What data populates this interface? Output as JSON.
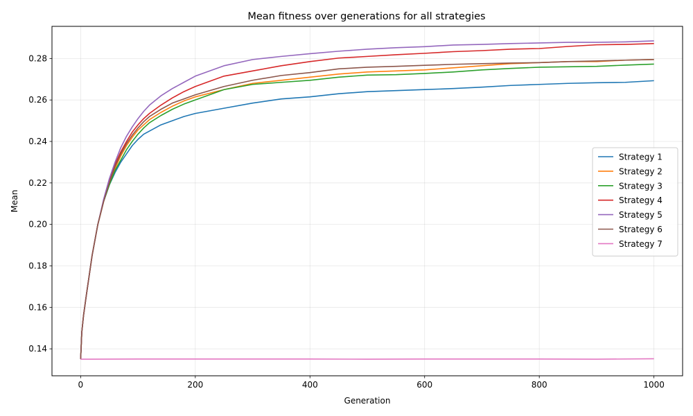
{
  "chart_data": {
    "type": "line",
    "title": "Mean fitness over generations for all strategies",
    "xlabel": "Generation",
    "ylabel": "Mean",
    "xlim": [
      -50,
      1050
    ],
    "ylim": [
      0.127,
      0.2955
    ],
    "xticks": [
      0,
      200,
      400,
      600,
      800,
      1000
    ],
    "xtick_labels": [
      "0",
      "200",
      "400",
      "600",
      "800",
      "1000"
    ],
    "yticks": [
      0.14,
      0.16,
      0.18,
      0.2,
      0.22,
      0.24,
      0.26,
      0.28
    ],
    "ytick_labels": [
      "0.14",
      "0.16",
      "0.18",
      "0.20",
      "0.22",
      "0.24",
      "0.26",
      "0.28"
    ],
    "grid": true,
    "legend_position": "center-right",
    "series": [
      {
        "name": "Strategy 1",
        "color": "#1f77b4",
        "x": [
          0,
          2,
          5,
          10,
          20,
          30,
          40,
          50,
          60,
          70,
          80,
          90,
          100,
          110,
          120,
          140,
          160,
          180,
          200,
          250,
          300,
          350,
          400,
          450,
          500,
          550,
          600,
          650,
          700,
          750,
          800,
          850,
          900,
          950,
          1000
        ],
        "y": [
          0.135,
          0.148,
          0.156,
          0.166,
          0.185,
          0.2,
          0.211,
          0.219,
          0.225,
          0.23,
          0.234,
          0.238,
          0.241,
          0.2435,
          0.245,
          0.248,
          0.25,
          0.252,
          0.2535,
          0.256,
          0.2585,
          0.2605,
          0.2615,
          0.263,
          0.264,
          0.2645,
          0.265,
          0.2655,
          0.2662,
          0.267,
          0.2675,
          0.268,
          0.2683,
          0.2685,
          0.2693
        ]
      },
      {
        "name": "Strategy 2",
        "color": "#ff7f0e",
        "x": [
          0,
          2,
          5,
          10,
          20,
          30,
          40,
          50,
          60,
          70,
          80,
          90,
          100,
          110,
          120,
          140,
          160,
          180,
          200,
          250,
          300,
          350,
          400,
          450,
          500,
          550,
          600,
          650,
          700,
          750,
          800,
          850,
          900,
          950,
          1000
        ],
        "y": [
          0.135,
          0.148,
          0.156,
          0.166,
          0.185,
          0.2,
          0.211,
          0.22,
          0.227,
          0.233,
          0.238,
          0.242,
          0.2455,
          0.248,
          0.2505,
          0.254,
          0.257,
          0.2595,
          0.2615,
          0.265,
          0.268,
          0.2695,
          0.271,
          0.2725,
          0.2735,
          0.274,
          0.2745,
          0.2755,
          0.2765,
          0.2775,
          0.278,
          0.2785,
          0.2785,
          0.2792,
          0.2795
        ]
      },
      {
        "name": "Strategy 3",
        "color": "#2ca02c",
        "x": [
          0,
          2,
          5,
          10,
          20,
          30,
          40,
          50,
          60,
          70,
          80,
          90,
          100,
          110,
          120,
          140,
          160,
          180,
          200,
          250,
          300,
          350,
          400,
          450,
          500,
          550,
          600,
          650,
          700,
          750,
          800,
          850,
          900,
          950,
          1000
        ],
        "y": [
          0.135,
          0.148,
          0.156,
          0.166,
          0.185,
          0.2,
          0.211,
          0.219,
          0.226,
          0.231,
          0.236,
          0.24,
          0.2435,
          0.2465,
          0.249,
          0.2525,
          0.2555,
          0.258,
          0.26,
          0.265,
          0.2675,
          0.2685,
          0.2695,
          0.271,
          0.272,
          0.2722,
          0.2728,
          0.2735,
          0.2745,
          0.2752,
          0.2758,
          0.276,
          0.2762,
          0.2768,
          0.2773
        ]
      },
      {
        "name": "Strategy 4",
        "color": "#d62728",
        "x": [
          0,
          2,
          5,
          10,
          20,
          30,
          40,
          50,
          60,
          70,
          80,
          90,
          100,
          110,
          120,
          140,
          160,
          180,
          200,
          250,
          300,
          350,
          400,
          450,
          500,
          550,
          600,
          650,
          700,
          750,
          800,
          850,
          900,
          950,
          1000
        ],
        "y": [
          0.135,
          0.148,
          0.156,
          0.166,
          0.185,
          0.2,
          0.211,
          0.221,
          0.229,
          0.235,
          0.24,
          0.2445,
          0.248,
          0.251,
          0.2535,
          0.2575,
          0.261,
          0.264,
          0.2665,
          0.2715,
          0.274,
          0.2765,
          0.2785,
          0.2802,
          0.281,
          0.2818,
          0.2825,
          0.2833,
          0.2838,
          0.2845,
          0.2848,
          0.2858,
          0.2866,
          0.2868,
          0.2872
        ]
      },
      {
        "name": "Strategy 5",
        "color": "#9467bd",
        "x": [
          0,
          2,
          5,
          10,
          20,
          30,
          40,
          50,
          60,
          70,
          80,
          90,
          100,
          110,
          120,
          140,
          160,
          180,
          200,
          250,
          300,
          350,
          400,
          450,
          500,
          550,
          600,
          650,
          700,
          750,
          800,
          850,
          900,
          950,
          1000
        ],
        "y": [
          0.135,
          0.148,
          0.156,
          0.166,
          0.185,
          0.2,
          0.212,
          0.222,
          0.23,
          0.237,
          0.2425,
          0.247,
          0.251,
          0.2545,
          0.2575,
          0.262,
          0.2655,
          0.2685,
          0.2715,
          0.2765,
          0.2795,
          0.281,
          0.2823,
          0.2835,
          0.2845,
          0.2852,
          0.2857,
          0.2865,
          0.2868,
          0.2872,
          0.2875,
          0.2878,
          0.2878,
          0.288,
          0.2885
        ]
      },
      {
        "name": "Strategy 6",
        "color": "#8c564b",
        "x": [
          0,
          2,
          5,
          10,
          20,
          30,
          40,
          50,
          60,
          70,
          80,
          90,
          100,
          110,
          120,
          140,
          160,
          180,
          200,
          250,
          300,
          350,
          400,
          450,
          500,
          550,
          600,
          650,
          700,
          750,
          800,
          850,
          900,
          950,
          1000
        ],
        "y": [
          0.135,
          0.148,
          0.156,
          0.166,
          0.185,
          0.2,
          0.211,
          0.22,
          0.228,
          0.234,
          0.239,
          0.243,
          0.2465,
          0.2495,
          0.252,
          0.2555,
          0.2585,
          0.2605,
          0.2625,
          0.2665,
          0.2695,
          0.2718,
          0.2732,
          0.275,
          0.2758,
          0.2762,
          0.2767,
          0.2772,
          0.2775,
          0.2778,
          0.278,
          0.2785,
          0.2788,
          0.2792,
          0.2795
        ]
      },
      {
        "name": "Strategy 7",
        "color": "#e377c2",
        "x": [
          0,
          100,
          200,
          300,
          400,
          500,
          600,
          700,
          800,
          900,
          1000
        ],
        "y": [
          0.135,
          0.1351,
          0.1351,
          0.1351,
          0.1351,
          0.135,
          0.1351,
          0.1351,
          0.1351,
          0.135,
          0.1352
        ]
      }
    ]
  }
}
